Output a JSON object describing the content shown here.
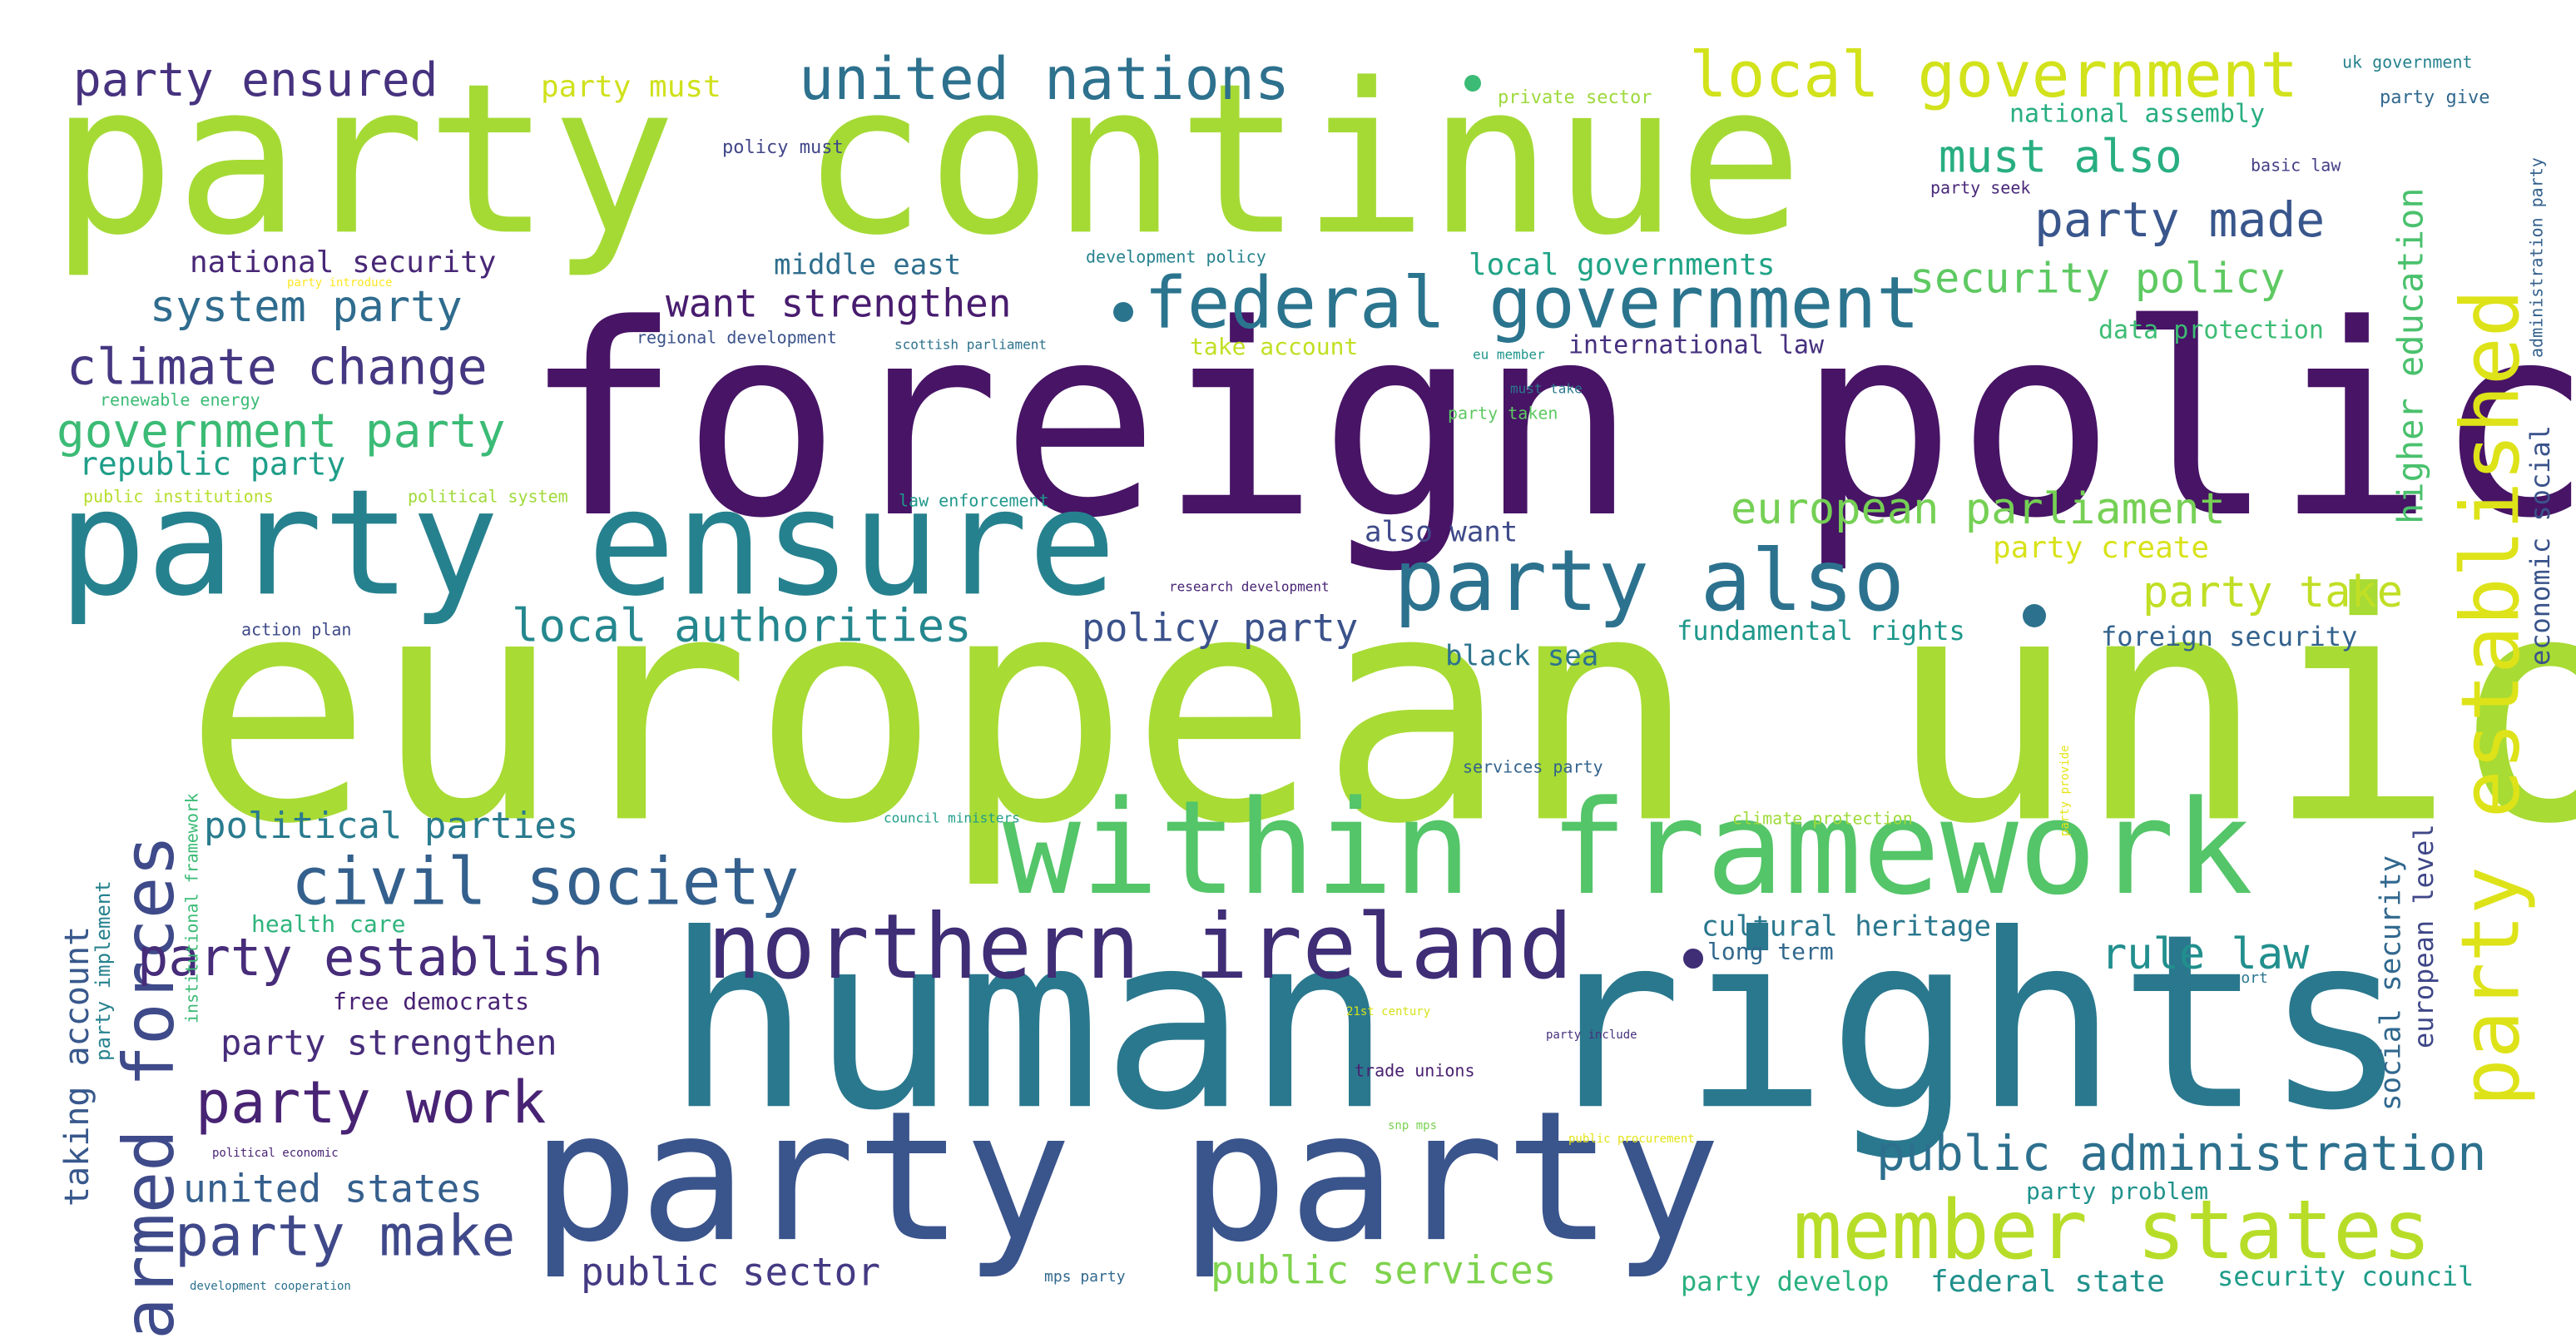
{
  "words": [
    {
      "text": "european union",
      "color": "#a8db34"
    },
    {
      "text": "foreign policy",
      "color": "#471466"
    },
    {
      "text": "human rights",
      "color": "#2a788e"
    },
    {
      "text": "party continue",
      "color": "#a5da35"
    },
    {
      "text": "party party",
      "color": "#3a548c"
    },
    {
      "text": "party ensure",
      "color": "#26818e"
    },
    {
      "text": "within framework",
      "color": "#54c568"
    },
    {
      "text": "northern ireland",
      "color": "#3f2d76"
    },
    {
      "text": "party also",
      "color": "#2c728e"
    },
    {
      "text": "member states",
      "color": "#b7dd29"
    },
    {
      "text": "federal government",
      "color": "#2b748e"
    },
    {
      "text": "party established",
      "color": "#dde318"
    },
    {
      "text": "armed forces",
      "color": "#3e4a89"
    },
    {
      "text": "civil society",
      "color": "#34608d"
    },
    {
      "text": "local government",
      "color": "#d2e21b"
    },
    {
      "text": "united nations",
      "color": "#2d718e"
    },
    {
      "text": "party work",
      "color": "#482374"
    },
    {
      "text": "party make",
      "color": "#3f4889"
    },
    {
      "text": "party establish",
      "color": "#472c7a"
    },
    {
      "text": "public administration",
      "color": "#2d708e"
    },
    {
      "text": "climate change",
      "color": "#453781"
    },
    {
      "text": "government party",
      "color": "#3bbb75"
    },
    {
      "text": "party made",
      "color": "#39568c"
    },
    {
      "text": "local authorities",
      "color": "#24878e"
    },
    {
      "text": "european parliament",
      "color": "#75d054"
    },
    {
      "text": "party ensured",
      "color": "#46327e"
    },
    {
      "text": "must also",
      "color": "#28ae80"
    },
    {
      "text": "rule law",
      "color": "#218f8d"
    },
    {
      "text": "public services",
      "color": "#7fd34e"
    },
    {
      "text": "system party",
      "color": "#2f6c8e"
    },
    {
      "text": "party take",
      "color": "#c0df25"
    },
    {
      "text": "security policy",
      "color": "#5ec962"
    },
    {
      "text": "want strengthen",
      "color": "#481c6e"
    },
    {
      "text": "policy party",
      "color": "#3b528b"
    },
    {
      "text": "united states",
      "color": "#355f8d"
    },
    {
      "text": "public sector",
      "color": "#443a83"
    },
    {
      "text": "higher education",
      "color": "#4ac16d"
    },
    {
      "text": "political parties",
      "color": "#297b8e"
    },
    {
      "text": "party strengthen",
      "color": "#472d7b"
    },
    {
      "text": "economic social",
      "color": "#3a538b"
    },
    {
      "text": "republic party",
      "color": "#1f9e89"
    },
    {
      "text": "taking account",
      "color": "#38588c"
    },
    {
      "text": "social security",
      "color": "#31688e"
    },
    {
      "text": "local governments",
      "color": "#20a486"
    },
    {
      "text": "european level",
      "color": "#3f4788"
    },
    {
      "text": "party must",
      "color": "#d0e11c"
    },
    {
      "text": "middle east",
      "color": "#2e6e8e"
    },
    {
      "text": "national security",
      "color": "#482777"
    },
    {
      "text": "party create",
      "color": "#d8e219"
    },
    {
      "text": "fundamental rights",
      "color": "#1f988b"
    },
    {
      "text": "foreign security",
      "color": "#33628d"
    },
    {
      "text": "cultural heritage",
      "color": "#2a778e"
    },
    {
      "text": "also want",
      "color": "#3e4989"
    },
    {
      "text": "federal state",
      "color": "#21918c"
    },
    {
      "text": "security council",
      "color": "#1e9c89"
    },
    {
      "text": "party develop",
      "color": "#2ab07f"
    },
    {
      "text": "party problem",
      "color": "#20928c"
    },
    {
      "text": "national assembly",
      "color": "#28ae80"
    },
    {
      "text": "international law",
      "color": "#46307e"
    },
    {
      "text": "black sea",
      "color": "#2c738e"
    },
    {
      "text": "data protection",
      "color": "#3dbc74"
    },
    {
      "text": "party implement",
      "color": "#26828e"
    },
    {
      "text": "health care",
      "color": "#2fb47c"
    },
    {
      "text": "free democrats",
      "color": "#482173"
    },
    {
      "text": "long term",
      "color": "#31688e"
    },
    {
      "text": "take account",
      "color": "#c2df23"
    },
    {
      "text": "institutional framework",
      "color": "#3bbb75"
    },
    {
      "text": "administration party",
      "color": "#34618d"
    },
    {
      "text": "uk government",
      "color": "#26828e"
    },
    {
      "text": "party give",
      "color": "#31688e"
    },
    {
      "text": "private sector",
      "color": "#9dd93b"
    },
    {
      "text": "policy must",
      "color": "#404688"
    },
    {
      "text": "basic law",
      "color": "#433e85"
    },
    {
      "text": "party seek",
      "color": "#482878"
    },
    {
      "text": "development policy",
      "color": "#26828e"
    },
    {
      "text": "regional development",
      "color": "#3b528b"
    },
    {
      "text": "scottish parliament",
      "color": "#2c728e"
    },
    {
      "text": "eu member",
      "color": "#1f968b"
    },
    {
      "text": "must take",
      "color": "#2a788e"
    },
    {
      "text": "party taken",
      "color": "#5ec962"
    },
    {
      "text": "renewable energy",
      "color": "#3bbb75"
    },
    {
      "text": "public institutions",
      "color": "#b5de2b"
    },
    {
      "text": "political system",
      "color": "#a0da39"
    },
    {
      "text": "law enforcement",
      "color": "#1f988b"
    },
    {
      "text": "research development",
      "color": "#482475"
    },
    {
      "text": "action plan",
      "color": "#3e4989"
    },
    {
      "text": "services party",
      "color": "#33638d"
    },
    {
      "text": "council ministers",
      "color": "#1f9e89"
    },
    {
      "text": "climate protection",
      "color": "#9fda3a"
    },
    {
      "text": "party provide",
      "color": "#e5e419"
    },
    {
      "text": "party introduce",
      "color": "#fde725"
    },
    {
      "text": "21st century",
      "color": "#d5e21a"
    },
    {
      "text": "party support",
      "color": "#2a768e"
    },
    {
      "text": "trade unions",
      "color": "#481f70"
    },
    {
      "text": "party include",
      "color": "#46327e"
    },
    {
      "text": "snp mps",
      "color": "#7ad151"
    },
    {
      "text": "public procurement",
      "color": "#e2e418"
    },
    {
      "text": "political economic",
      "color": "#482475"
    },
    {
      "text": "development cooperation",
      "color": "#2c728e"
    },
    {
      "text": "mps party",
      "color": "#31688e"
    }
  ]
}
